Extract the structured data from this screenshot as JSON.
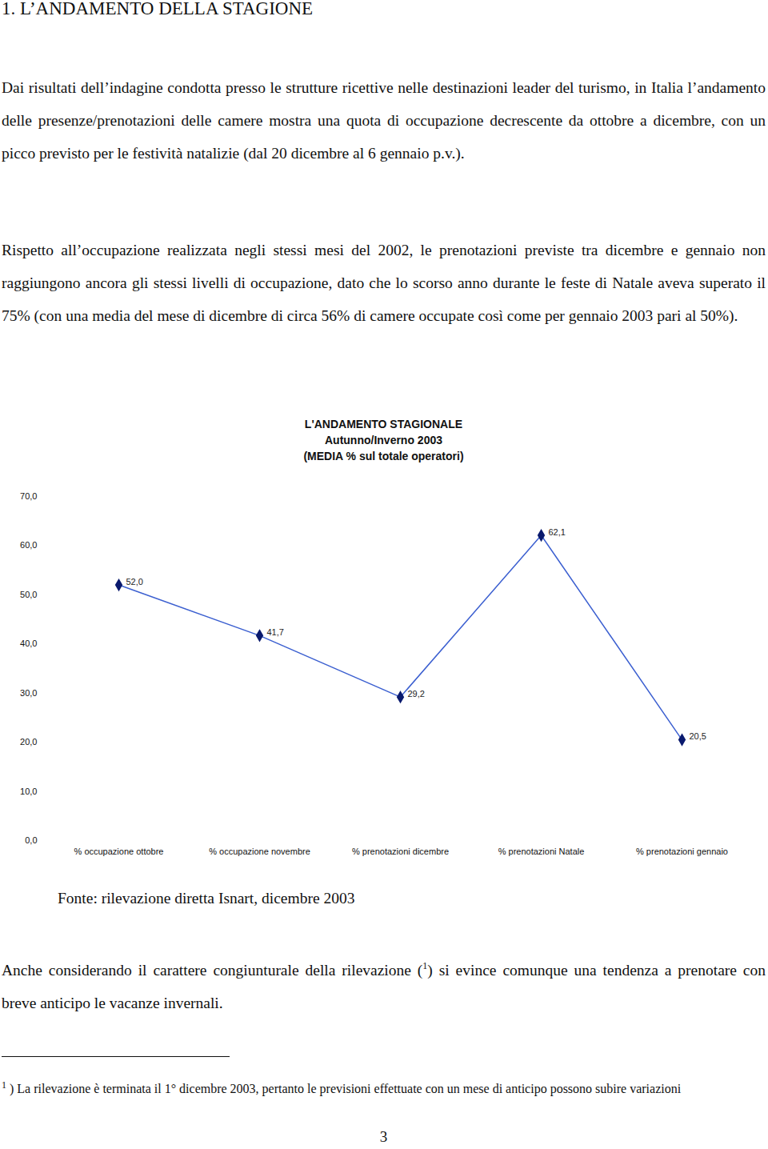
{
  "document": {
    "heading": "1. L’ANDAMENTO DELLA STAGIONE",
    "paragraphs": [
      "Dai risultati dell’indagine condotta presso le strutture ricettive nelle destinazioni leader del turismo, in Italia l’andamento delle presenze/prenotazioni delle camere mostra una quota di occupazione decrescente da ottobre a dicembre, con un picco previsto per le festività natalizie (dal 20 dicembre al 6 gennaio p.v.).",
      "Rispetto all’occupazione realizzata negli stessi mesi del 2002, le prenotazioni previste tra dicembre e gennaio non raggiungono ancora gli stessi livelli di occupazione, dato che lo scorso anno durante le feste di Natale aveva superato il 75% (con una media del mese di dicembre di circa 56% di camere occupate così come per gennaio 2003 pari al 50%)."
    ],
    "source": "Fonte: rilevazione diretta Isnart, dicembre 2003",
    "closing_paragraph": {
      "before": "Anche considerando il carattere congiunturale della rilevazione (",
      "note_ref": "1",
      "after": ") si evince comunque una tendenza a prenotare con breve anticipo le vacanze invernali."
    },
    "footnote": {
      "ref": "1",
      "text": ") La rilevazione è terminata il 1° dicembre 2003, pertanto le previsioni effettuate con un mese di anticipo possono subire variazioni"
    },
    "page_number": "3"
  },
  "chart_data": {
    "type": "line",
    "title": "L'ANDAMENTO STAGIONALE",
    "subtitle": [
      "Autunno/Inverno 2003",
      "(MEDIA % sul totale operatori)"
    ],
    "categories": [
      "% occupazione ottobre",
      "% occupazione novembre",
      "% prenotazioni dicembre",
      "% prenotazioni Natale",
      "% prenotazioni gennaio"
    ],
    "series": [
      {
        "name": "MEDIA % sul totale operatori",
        "color": "#3b5fd0",
        "marker": "diamond",
        "values": [
          52.0,
          41.7,
          29.2,
          62.1,
          20.5
        ],
        "value_labels": [
          "52,0",
          "41,7",
          "29,2",
          "62,1",
          "20,5"
        ]
      }
    ],
    "ylim": [
      0,
      70
    ],
    "yticks": [
      {
        "value": 0,
        "label": "0,0"
      },
      {
        "value": 10,
        "label": "10,0"
      },
      {
        "value": 20,
        "label": "20,0"
      },
      {
        "value": 30,
        "label": "30,0"
      },
      {
        "value": 40,
        "label": "40,0"
      },
      {
        "value": 50,
        "label": "50,0"
      },
      {
        "value": 60,
        "label": "60,0"
      },
      {
        "value": 70,
        "label": "70,0"
      }
    ],
    "grid": false,
    "data_labels": true
  }
}
